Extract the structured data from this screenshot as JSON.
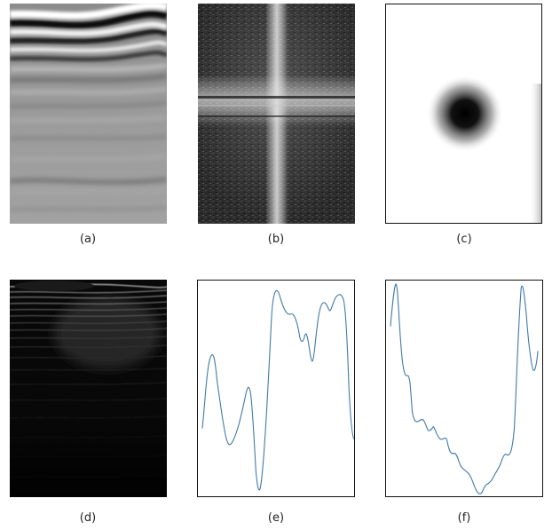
{
  "captions": {
    "a": "(a)",
    "b": "(b)",
    "c": "(c)",
    "d": "(d)",
    "e": "(e)",
    "f": "(f)"
  },
  "colors": {
    "line": "#3f79a8",
    "frame": "#111111",
    "panel_a_base": "#9a9a9a",
    "panel_d_base": "#080808"
  }
}
